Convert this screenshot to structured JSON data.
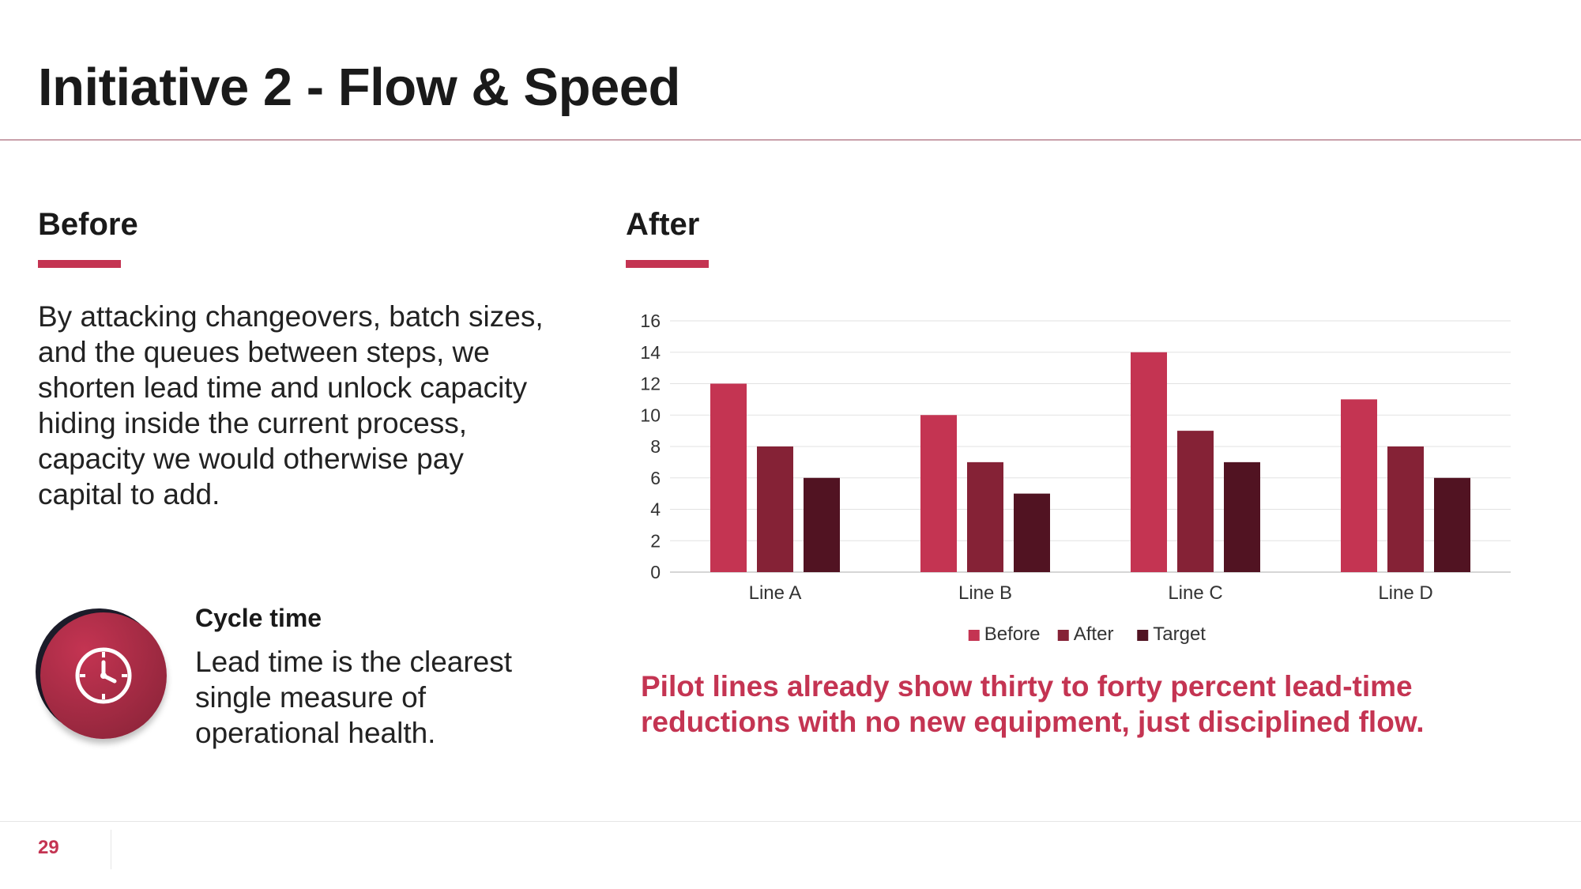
{
  "slide": {
    "title": "Initiative 2 - Flow & Speed",
    "page_number": "29"
  },
  "colors": {
    "accent": "#c43452",
    "before": "#c43452",
    "after": "#852236",
    "target": "#511322",
    "rule": "#c9a0ab"
  },
  "before_section": {
    "heading": "Before",
    "body": "By attacking changeovers, batch sizes, and the queues between steps, we shorten lead time and unlock capacity hiding inside the current process, capacity we would otherwise pay capital to add."
  },
  "after_section": {
    "heading": "After"
  },
  "metric": {
    "icon": "clock-icon",
    "title": "Cycle time",
    "description": "Lead time is the clearest single measure of operational health."
  },
  "callout": "Pilot lines already show thirty to forty percent lead-time reductions with no new equipment, just disciplined flow.",
  "chart_data": {
    "type": "bar",
    "categories": [
      "Line A",
      "Line B",
      "Line C",
      "Line D"
    ],
    "series": [
      {
        "name": "Before",
        "values": [
          12,
          10,
          14,
          11
        ]
      },
      {
        "name": "After",
        "values": [
          8,
          7,
          9,
          8
        ]
      },
      {
        "name": "Target",
        "values": [
          6,
          5,
          7,
          6
        ]
      }
    ],
    "ylim": [
      0,
      16
    ],
    "yticks": [
      0,
      2,
      4,
      6,
      8,
      10,
      12,
      14,
      16
    ],
    "grid": true,
    "legend": "bottom",
    "title": "",
    "xlabel": "",
    "ylabel": ""
  }
}
